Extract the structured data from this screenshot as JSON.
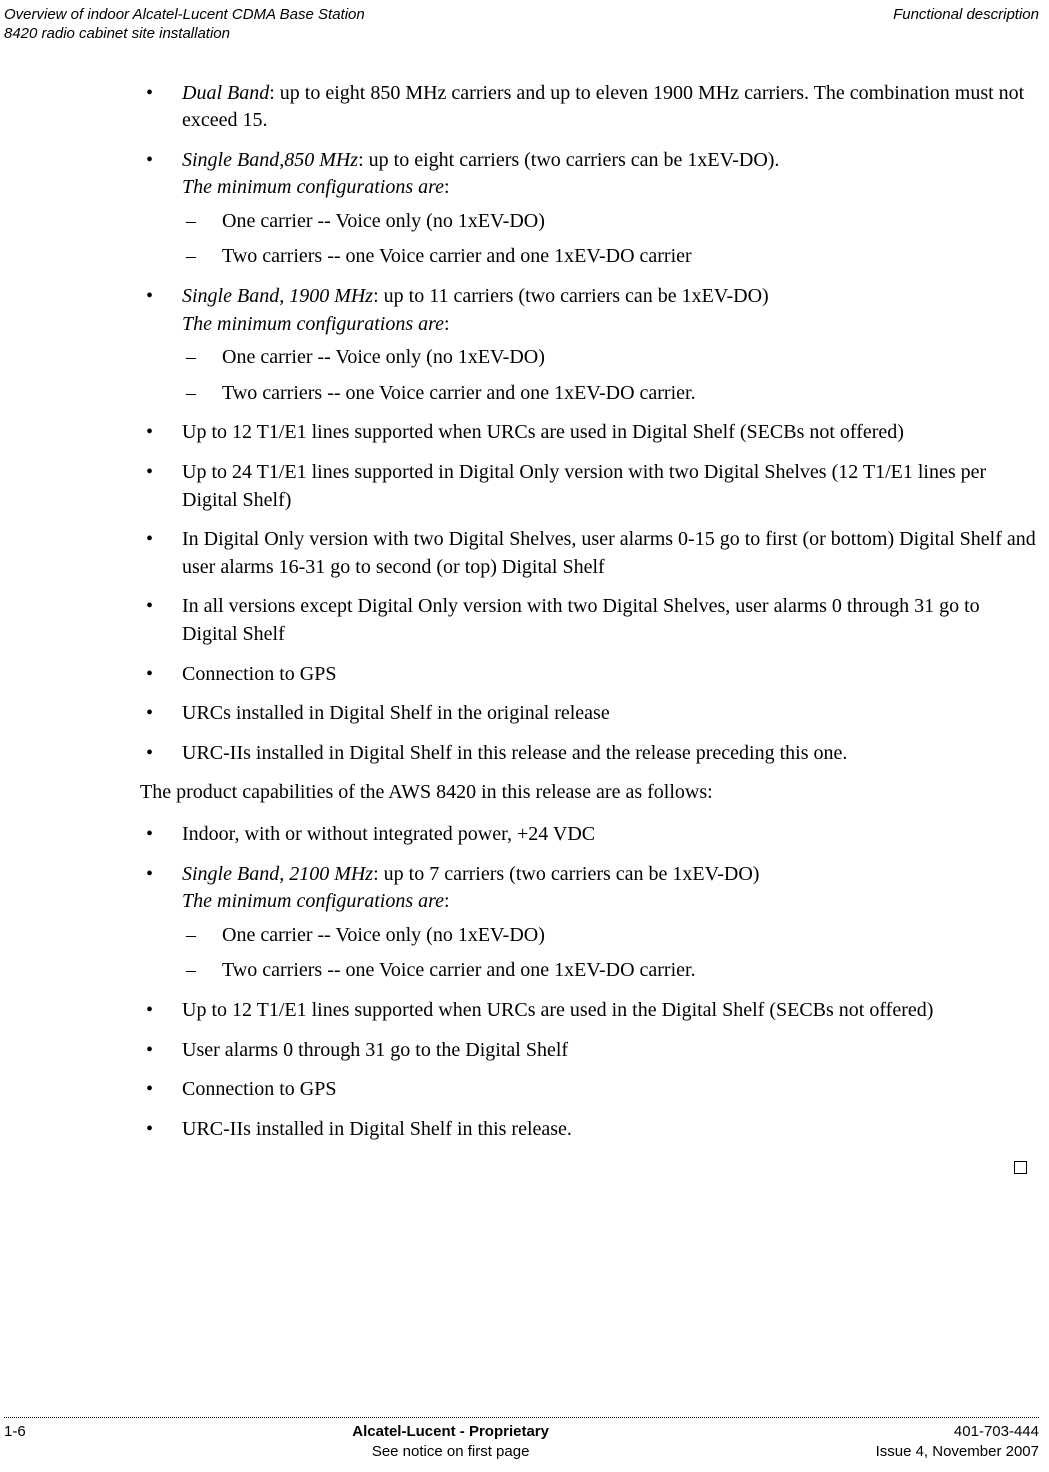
{
  "header": {
    "left_line1": "Overview of indoor Alcatel-Lucent CDMA Base Station",
    "left_line2": "8420 radio cabinet site installation",
    "right": "Functional description"
  },
  "list1": {
    "i0": {
      "lead": "Dual Band",
      "rest": ": up to eight 850 MHz carriers and up to eleven 1900 MHz carriers. The combination must not exceed 15."
    },
    "i1": {
      "lead": "Single Band,850 MHz",
      "rest": ": up to eight carriers (two carriers can be 1xEV-DO).",
      "sub_intro": "The minimum configurations are",
      "sub_colon": ":",
      "d0": "One carrier -- Voice only (no 1xEV-DO)",
      "d1": "Two carriers -- one Voice carrier and one 1xEV-DO carrier"
    },
    "i2": {
      "lead": "Single Band, 1900 MHz",
      "rest": ": up to 11 carriers (two carriers can be 1xEV-DO)",
      "sub_intro": "The minimum configurations are",
      "sub_colon": ":",
      "d0": "One carrier -- Voice only (no 1xEV-DO)",
      "d1": "Two carriers -- one Voice carrier and one 1xEV-DO carrier."
    },
    "i3": "Up to 12 T1/E1 lines supported when URCs are used in Digital Shelf (SECBs not offered)",
    "i4": "Up to 24 T1/E1 lines supported in Digital Only version with two Digital Shelves (12 T1/E1 lines per Digital Shelf)",
    "i5": "In Digital Only version with two Digital Shelves, user alarms 0-15 go to first (or bottom) Digital Shelf and user alarms 16-31 go to second (or top) Digital Shelf",
    "i6": "In all versions except Digital Only version with two Digital Shelves, user alarms 0 through 31 go to Digital Shelf",
    "i7": "Connection to GPS",
    "i8": "URCs installed in Digital Shelf in the original release",
    "i9": "URC-IIs installed in Digital Shelf in this release and the release preceding this one."
  },
  "mid_para": "The product capabilities of the AWS 8420 in this release are as follows:",
  "list2": {
    "i0": "Indoor, with or without integrated power, +24 VDC",
    "i1": {
      "lead": "Single Band, 2100 MHz",
      "rest": ": up to 7 carriers (two carriers can be 1xEV-DO)",
      "sub_intro": "The minimum configurations are",
      "sub_colon": ":",
      "d0": "One carrier -- Voice only (no 1xEV-DO)",
      "d1": "Two carriers -- one Voice carrier and one 1xEV-DO carrier."
    },
    "i2": "Up to 12 T1/E1 lines supported when URCs are used in the Digital Shelf (SECBs not offered)",
    "i3": "User alarms 0 through 31 go to the Digital Shelf",
    "i4": "Connection to GPS",
    "i5": "URC-IIs installed in Digital Shelf in this release."
  },
  "footer": {
    "page": "1-6",
    "center1": "Alcatel-Lucent - Proprietary",
    "center2": "See notice on first page",
    "right1": "401-703-444",
    "right2": "Issue 4, November 2007"
  }
}
